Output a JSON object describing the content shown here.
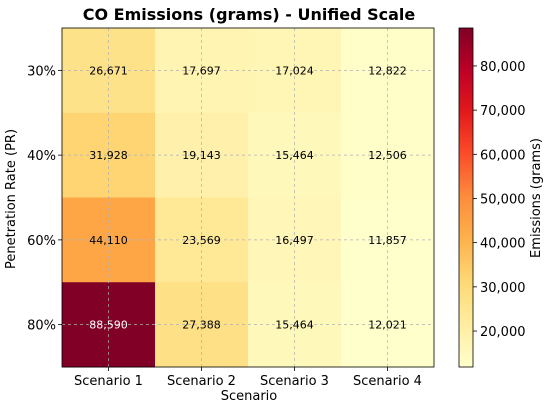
{
  "chart_data": {
    "type": "heatmap",
    "title": "CO Emissions (grams) - Unified Scale",
    "xlabel": "Scenario",
    "ylabel": "Penetration Rate (PR)",
    "x_categories": [
      "Scenario 1",
      "Scenario 2",
      "Scenario 3",
      "Scenario 4"
    ],
    "y_categories": [
      "30%",
      "40%",
      "60%",
      "80%"
    ],
    "values": [
      [
        26671,
        17697,
        17024,
        12822
      ],
      [
        31928,
        19143,
        15464,
        12506
      ],
      [
        44110,
        23569,
        16497,
        11857
      ],
      [
        88590,
        27388,
        15464,
        12021
      ]
    ],
    "cell_labels": [
      [
        "26,671",
        "17,697",
        "17,024",
        "12,822"
      ],
      [
        "31,928",
        "19,143",
        "15,464",
        "12,506"
      ],
      [
        "44,110",
        "23,569",
        "16,497",
        "11,857"
      ],
      [
        "88,590",
        "27,388",
        "15,464",
        "12,021"
      ]
    ],
    "colorbar": {
      "label": "Emissions (grams)",
      "min": 11857,
      "max": 88590,
      "ticks": [
        20000,
        30000,
        40000,
        50000,
        60000,
        70000,
        80000
      ],
      "tick_labels": [
        "20,000",
        "30,000",
        "40,000",
        "50,000",
        "60,000",
        "70,000",
        "80,000"
      ],
      "colormap": "YlOrRd",
      "stops": [
        "#ffffcc",
        "#ffeda0",
        "#fed976",
        "#feb24c",
        "#fd8d3c",
        "#fc4e2a",
        "#e31a1c",
        "#bd0026",
        "#800026"
      ]
    },
    "grid": true,
    "label_text_color_dark": "#000000",
    "label_text_color_light": "#ffffff"
  }
}
